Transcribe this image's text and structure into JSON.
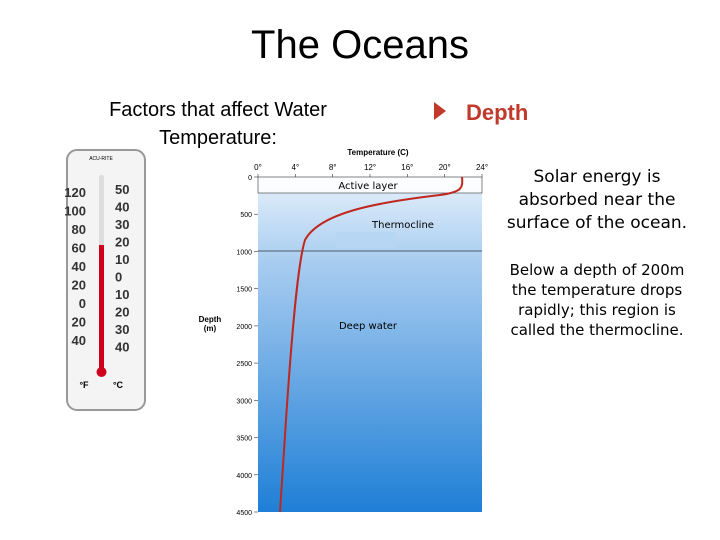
{
  "title": "The Oceans",
  "subtitle_lines": [
    "Factors that affect  Water",
    "Temperature:"
  ],
  "heading": "Depth",
  "paragraphs": [
    [
      "Solar energy is",
      "absorbed near the",
      "surface of the ocean."
    ],
    [
      "Below a depth of 200m",
      "the temperature drops",
      "rapidly; this region is",
      "called the thermocline."
    ]
  ],
  "thermometer": {
    "brand": "ACU-RITE",
    "fahrenheit_labels": [
      "120",
      "100",
      "80",
      "60",
      "40",
      "20",
      "0",
      "20",
      "40"
    ],
    "celsius_labels": [
      "50",
      "40",
      "30",
      "20",
      "10",
      "0",
      "10",
      "20",
      "30",
      "40"
    ],
    "fahrenheit_unit": "°F",
    "celsius_unit": "°C"
  },
  "depth_figure": {
    "x_label": "Temperature (C)",
    "x_ticks": [
      "0°",
      "4°",
      "8°",
      "12°",
      "16°",
      "20°",
      "24°"
    ],
    "y_label_lines": [
      "Depth",
      "(m)"
    ],
    "y_ticks": [
      0,
      500,
      1000,
      1500,
      2000,
      2500,
      3000,
      3500,
      4000,
      4500
    ],
    "layers": [
      "Active layer",
      "Thermocline",
      "Deep water"
    ]
  }
}
